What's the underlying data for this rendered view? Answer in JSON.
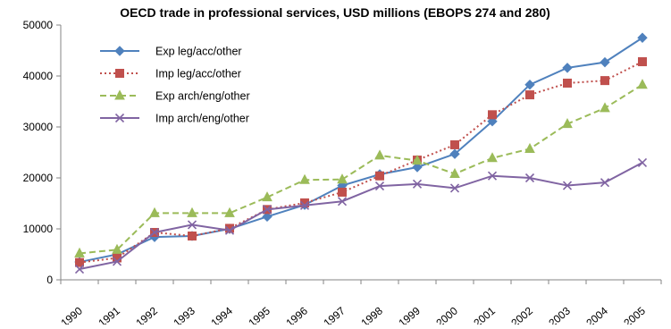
{
  "chart_data": {
    "type": "line",
    "title": "OECD  trade in professional services, USD millions (EBOPS 274 and 280)",
    "xlabel": "",
    "ylabel": "",
    "ylim": [
      0,
      50000
    ],
    "y_ticks": [
      "0",
      "10000",
      "20000",
      "30000",
      "40000",
      "50000"
    ],
    "categories": [
      "1990",
      "1991",
      "1992",
      "1993",
      "1994",
      "1995",
      "1996",
      "1997",
      "1998",
      "1999",
      "2000",
      "2001",
      "2002",
      "2003",
      "2004",
      "2005"
    ],
    "grid": false,
    "legend_position": "top-left",
    "series": [
      {
        "name": "Exp leg/acc/other",
        "color": "#4F81BD",
        "marker": "diamond",
        "dash": "solid",
        "values": [
          3500,
          5000,
          8400,
          8600,
          10000,
          12400,
          14700,
          18500,
          20700,
          22100,
          24700,
          31100,
          38300,
          41600,
          42700,
          47500
        ]
      },
      {
        "name": "Imp leg/acc/other",
        "color": "#C0504D",
        "marker": "square",
        "dash": "dotted",
        "values": [
          3400,
          4300,
          9300,
          8600,
          10100,
          13800,
          15100,
          17200,
          20400,
          23500,
          26500,
          32400,
          36300,
          38600,
          39100,
          42800
        ]
      },
      {
        "name": "Exp arch/eng/other",
        "color": "#9BBB59",
        "marker": "triangle",
        "dash": "dashed",
        "values": [
          5200,
          5900,
          13100,
          13100,
          13100,
          16200,
          19600,
          19700,
          24400,
          23400,
          20800,
          23900,
          25700,
          30600,
          33700,
          38300
        ]
      },
      {
        "name": "Imp arch/eng/other",
        "color": "#8064A2",
        "marker": "x",
        "dash": "solid",
        "values": [
          2100,
          3600,
          9300,
          10800,
          9700,
          13800,
          14600,
          15400,
          18400,
          18800,
          18000,
          20400,
          20000,
          18500,
          19100,
          23000
        ]
      }
    ]
  }
}
